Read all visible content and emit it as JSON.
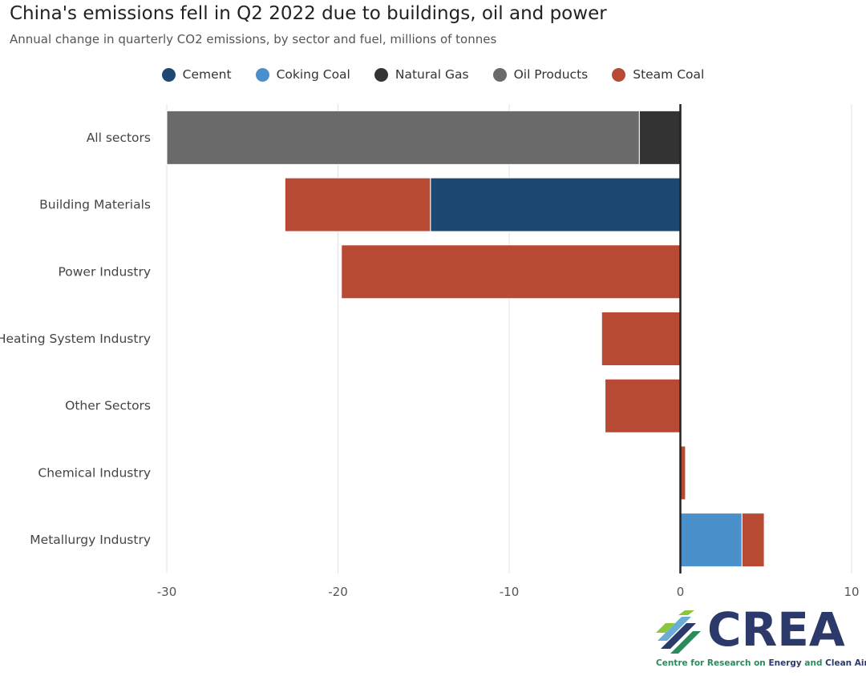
{
  "title": "China's emissions fell in Q2 2022 due to buildings, oil and power",
  "subtitle": "Annual change in quarterly CO2 emissions, by sector and fuel, millions of tonnes",
  "logo": {
    "word": "CREA",
    "tagline_prefix": "Centre for Research on ",
    "tagline_energy": "Energy",
    "tagline_and": " and ",
    "tagline_clean_air": "Clean Air"
  },
  "colors": {
    "Cement": "#1c4872",
    "Coking Coal": "#4a91cc",
    "Natural Gas": "#333333",
    "Oil Products": "#6a6a6a",
    "Steam Coal": "#b84a34"
  },
  "chart_data": {
    "type": "bar",
    "orientation": "horizontal",
    "stacked": true,
    "title": "China's emissions fell in Q2 2022 due to buildings, oil and power",
    "subtitle": "Annual change in quarterly CO2 emissions, by sector and fuel, millions of tonnes",
    "xlabel": "",
    "ylabel": "",
    "xlim": [
      -30,
      10
    ],
    "xticks": [
      -30,
      -20,
      -10,
      0,
      10
    ],
    "grid": true,
    "legend_position": "top",
    "categories": [
      "All sectors",
      "Building Materials",
      "Power Industry",
      "Heating System Industry",
      "Other Sectors",
      "Chemical Industry",
      "Metallurgy Industry"
    ],
    "series": [
      {
        "name": "Cement",
        "values": [
          0,
          -14.6,
          0,
          0,
          0,
          0,
          0
        ]
      },
      {
        "name": "Coking Coal",
        "values": [
          0,
          0,
          0,
          0,
          0,
          0,
          3.6
        ]
      },
      {
        "name": "Natural Gas",
        "values": [
          -2.4,
          0,
          0,
          0,
          0,
          0,
          0
        ]
      },
      {
        "name": "Oil Products",
        "values": [
          -27.6,
          0,
          0,
          0,
          0,
          0,
          0
        ]
      },
      {
        "name": "Steam Coal",
        "values": [
          0,
          -8.5,
          -19.8,
          -4.6,
          -4.4,
          0.3,
          1.3
        ]
      }
    ]
  }
}
